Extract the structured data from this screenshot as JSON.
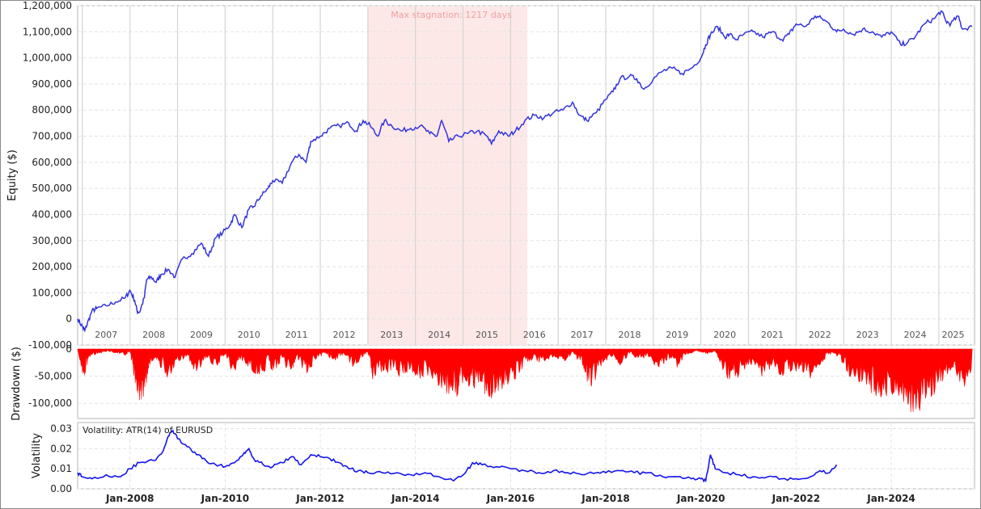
{
  "chart_data": [
    {
      "type": "line",
      "panel": "equity",
      "ylabel": "Equity ($)",
      "ylim": [
        -100000,
        1200000
      ],
      "yticks": [
        "1,200,000",
        "1,100,000",
        "1,000,000",
        "900,000",
        "800,000",
        "700,000",
        "600,000",
        "500,000",
        "400,000",
        "300,000",
        "200,000",
        "100,000",
        "0",
        "-100,000"
      ],
      "ytick_values": [
        1200000,
        1100000,
        1000000,
        900000,
        800000,
        700000,
        600000,
        500000,
        400000,
        300000,
        200000,
        100000,
        0,
        -100000
      ],
      "xlim": [
        2006.9,
        2025.75
      ],
      "year_labels": [
        "2007",
        "2008",
        "2009",
        "2010",
        "2011",
        "2012",
        "2013",
        "2014",
        "2015",
        "2016",
        "2017",
        "2018",
        "2019",
        "2020",
        "2021",
        "2022",
        "2023",
        "2024",
        "2025"
      ],
      "year_positions": [
        2007.5,
        2008.5,
        2009.5,
        2010.5,
        2011.5,
        2012.5,
        2013.5,
        2014.5,
        2015.5,
        2016.5,
        2017.5,
        2018.5,
        2019.5,
        2020.5,
        2021.5,
        2022.5,
        2023.5,
        2024.5,
        2025.3
      ],
      "grid": true,
      "color": "#3333dd",
      "stagnation": {
        "label": "Max stagnation: 1217 days",
        "start": 2013.0,
        "end": 2016.35,
        "color": "#fde8e8"
      },
      "x": [
        2006.9,
        2007.0,
        2007.05,
        2007.1,
        2007.2,
        2007.3,
        2007.5,
        2007.7,
        2007.9,
        2008.0,
        2008.1,
        2008.15,
        2008.2,
        2008.3,
        2008.35,
        2008.45,
        2008.55,
        2008.65,
        2008.8,
        2008.95,
        2009.1,
        2009.3,
        2009.5,
        2009.65,
        2009.8,
        2009.95,
        2010.1,
        2010.2,
        2010.35,
        2010.5,
        2010.6,
        2010.75,
        2010.9,
        2011.0,
        2011.2,
        2011.4,
        2011.55,
        2011.7,
        2011.8,
        2012.0,
        2012.2,
        2012.4,
        2012.6,
        2012.75,
        2012.9,
        2013.05,
        2013.2,
        2013.35,
        2013.5,
        2013.7,
        2013.9,
        2014.1,
        2014.3,
        2014.45,
        2014.55,
        2014.7,
        2014.9,
        2015.1,
        2015.3,
        2015.5,
        2015.6,
        2015.75,
        2015.95,
        2016.1,
        2016.3,
        2016.5,
        2016.7,
        2016.9,
        2017.1,
        2017.3,
        2017.45,
        2017.6,
        2017.8,
        2018.0,
        2018.15,
        2018.3,
        2018.5,
        2018.65,
        2018.8,
        2019.0,
        2019.2,
        2019.4,
        2019.6,
        2019.8,
        2020.0,
        2020.1,
        2020.2,
        2020.35,
        2020.5,
        2020.6,
        2020.75,
        2020.9,
        2021.1,
        2021.3,
        2021.5,
        2021.7,
        2021.85,
        2022.0,
        2022.2,
        2022.4,
        2022.55,
        2022.7,
        2022.85,
        2023.0,
        2023.2,
        2023.4,
        2023.6,
        2023.8,
        2024.0,
        2024.2,
        2024.35,
        2024.5,
        2024.7,
        2024.9,
        2025.05,
        2025.15,
        2025.25,
        2025.4,
        2025.5,
        2025.7
      ],
      "values": [
        0,
        -30000,
        -45000,
        -20000,
        30000,
        40000,
        50000,
        65000,
        80000,
        110000,
        70000,
        30000,
        25000,
        80000,
        150000,
        160000,
        140000,
        170000,
        190000,
        160000,
        230000,
        250000,
        290000,
        240000,
        310000,
        330000,
        360000,
        400000,
        350000,
        420000,
        430000,
        470000,
        500000,
        530000,
        520000,
        600000,
        630000,
        600000,
        680000,
        700000,
        730000,
        740000,
        750000,
        720000,
        760000,
        740000,
        700000,
        760000,
        740000,
        720000,
        730000,
        740000,
        710000,
        700000,
        760000,
        680000,
        700000,
        710000,
        720000,
        700000,
        670000,
        720000,
        700000,
        720000,
        760000,
        780000,
        770000,
        790000,
        800000,
        830000,
        780000,
        760000,
        790000,
        840000,
        870000,
        920000,
        930000,
        920000,
        880000,
        920000,
        950000,
        960000,
        940000,
        960000,
        1000000,
        1050000,
        1090000,
        1120000,
        1080000,
        1090000,
        1070000,
        1090000,
        1100000,
        1080000,
        1100000,
        1070000,
        1090000,
        1130000,
        1120000,
        1160000,
        1150000,
        1130000,
        1100000,
        1110000,
        1090000,
        1110000,
        1100000,
        1080000,
        1100000,
        1050000,
        1060000,
        1080000,
        1130000,
        1150000,
        1180000,
        1140000,
        1130000,
        1160000,
        1110000,
        1120000
      ]
    },
    {
      "type": "area",
      "panel": "drawdown",
      "ylabel": "Drawdown ($)",
      "ylim": [
        -128000,
        0
      ],
      "yticks": [
        "0",
        "-50,000",
        "-100,000"
      ],
      "ytick_values": [
        0,
        -50000,
        -100000
      ],
      "xlim": [
        2006.9,
        2025.75
      ],
      "grid": true,
      "color": "#ff0000",
      "x": [
        2006.9,
        2007.0,
        2007.05,
        2007.15,
        2007.3,
        2007.5,
        2007.7,
        2007.9,
        2008.0,
        2008.1,
        2008.2,
        2008.3,
        2008.4,
        2008.6,
        2008.8,
        2009.0,
        2009.2,
        2009.4,
        2009.6,
        2009.8,
        2010.0,
        2010.2,
        2010.3,
        2010.5,
        2010.7,
        2010.9,
        2011.0,
        2011.2,
        2011.4,
        2011.5,
        2011.7,
        2011.9,
        2012.1,
        2012.3,
        2012.5,
        2012.7,
        2012.9,
        2013.0,
        2013.1,
        2013.3,
        2013.5,
        2013.7,
        2013.9,
        2014.1,
        2014.3,
        2014.5,
        2014.6,
        2014.8,
        2014.9,
        2015.0,
        2015.2,
        2015.4,
        2015.55,
        2015.7,
        2015.9,
        2016.1,
        2016.3,
        2016.5,
        2016.7,
        2016.9,
        2017.1,
        2017.3,
        2017.5,
        2017.6,
        2017.7,
        2017.9,
        2018.1,
        2018.3,
        2018.5,
        2018.7,
        2018.9,
        2019.1,
        2019.3,
        2019.5,
        2019.7,
        2019.9,
        2020.1,
        2020.3,
        2020.5,
        2020.7,
        2020.9,
        2021.1,
        2021.3,
        2021.5,
        2021.7,
        2021.9,
        2022.1,
        2022.3,
        2022.5,
        2022.7,
        2022.9,
        2023.1,
        2023.3,
        2023.5,
        2023.7,
        2023.9,
        2024.1,
        2024.3,
        2024.4,
        2024.5,
        2024.7,
        2024.9,
        2025.1,
        2025.3,
        2025.5,
        2025.7
      ],
      "values": [
        0,
        -45000,
        -50000,
        -15000,
        -10000,
        -5000,
        -8000,
        -12000,
        -5000,
        -60000,
        -95000,
        -90000,
        -40000,
        -30000,
        -55000,
        -30000,
        -20000,
        -50000,
        -15000,
        -40000,
        -10000,
        -55000,
        -20000,
        -35000,
        -60000,
        -30000,
        -45000,
        -25000,
        -50000,
        -15000,
        -55000,
        -20000,
        -10000,
        -25000,
        -10000,
        -35000,
        -15000,
        -5000,
        -60000,
        -50000,
        -45000,
        -55000,
        -40000,
        -60000,
        -50000,
        -70000,
        -85000,
        -95000,
        -90000,
        -60000,
        -75000,
        -80000,
        -105000,
        -90000,
        -70000,
        -60000,
        -30000,
        -20000,
        -30000,
        -15000,
        -25000,
        -10000,
        -30000,
        -60000,
        -70000,
        -40000,
        -15000,
        -30000,
        -10000,
        -20000,
        -15000,
        -40000,
        -20000,
        -35000,
        -10000,
        -5000,
        -10000,
        -5000,
        -55000,
        -60000,
        -45000,
        -30000,
        -55000,
        -40000,
        -50000,
        -45000,
        -40000,
        -60000,
        -30000,
        -10000,
        -15000,
        -50000,
        -60000,
        -80000,
        -90000,
        -100000,
        -95000,
        -100000,
        -120000,
        -122000,
        -110000,
        -90000,
        -60000,
        -40000,
        -70000,
        -75000
      ]
    },
    {
      "type": "line",
      "panel": "volatility",
      "ylabel": "Volatility",
      "series_label": "Volatility: ATR(14) of EURUSD",
      "ylim": [
        0,
        0.033
      ],
      "yticks": [
        "0.03",
        "0.02",
        "0.01",
        "0.00"
      ],
      "ytick_values": [
        0.03,
        0.02,
        0.01,
        0.0
      ],
      "xlim": [
        2006.9,
        2025.75
      ],
      "xticks": [
        "Jan-2008",
        "Jan-2010",
        "Jan-2012",
        "Jan-2014",
        "Jan-2016",
        "Jan-2018",
        "Jan-2020",
        "Jan-2022",
        "Jan-2024"
      ],
      "xtick_values": [
        2008,
        2010,
        2012,
        2014,
        2016,
        2018,
        2020,
        2022,
        2024
      ],
      "grid": true,
      "color": "#1515ee",
      "x": [
        2006.9,
        2007.0,
        2007.2,
        2007.5,
        2007.8,
        2008.0,
        2008.2,
        2008.5,
        2008.7,
        2008.8,
        2008.9,
        2009.0,
        2009.2,
        2009.4,
        2009.6,
        2009.8,
        2010.0,
        2010.2,
        2010.4,
        2010.5,
        2010.6,
        2010.8,
        2011.0,
        2011.2,
        2011.4,
        2011.6,
        2011.8,
        2012.0,
        2012.2,
        2012.4,
        2012.6,
        2012.8,
        2013.0,
        2013.3,
        2013.6,
        2013.9,
        2014.2,
        2014.5,
        2014.8,
        2015.05,
        2015.2,
        2015.4,
        2015.7,
        2016.0,
        2016.3,
        2016.6,
        2016.9,
        2017.2,
        2017.5,
        2017.8,
        2018.0,
        2018.3,
        2018.6,
        2018.9,
        2019.2,
        2019.5,
        2019.8,
        2020.0,
        2020.1,
        2020.2,
        2020.3,
        2020.5,
        2020.8,
        2021.1,
        2021.4,
        2021.7,
        2022.0,
        2022.3,
        2022.5,
        2022.7,
        2022.85
      ],
      "values": [
        0.008,
        0.006,
        0.005,
        0.007,
        0.006,
        0.01,
        0.013,
        0.014,
        0.019,
        0.026,
        0.029,
        0.025,
        0.021,
        0.017,
        0.014,
        0.012,
        0.011,
        0.013,
        0.018,
        0.02,
        0.015,
        0.012,
        0.011,
        0.013,
        0.016,
        0.012,
        0.017,
        0.016,
        0.015,
        0.013,
        0.01,
        0.009,
        0.008,
        0.008,
        0.008,
        0.007,
        0.008,
        0.006,
        0.004,
        0.008,
        0.013,
        0.012,
        0.011,
        0.01,
        0.009,
        0.008,
        0.009,
        0.008,
        0.007,
        0.008,
        0.008,
        0.009,
        0.008,
        0.008,
        0.006,
        0.006,
        0.005,
        0.005,
        0.004,
        0.017,
        0.01,
        0.008,
        0.007,
        0.006,
        0.006,
        0.005,
        0.005,
        0.006,
        0.009,
        0.008,
        0.012
      ]
    }
  ]
}
